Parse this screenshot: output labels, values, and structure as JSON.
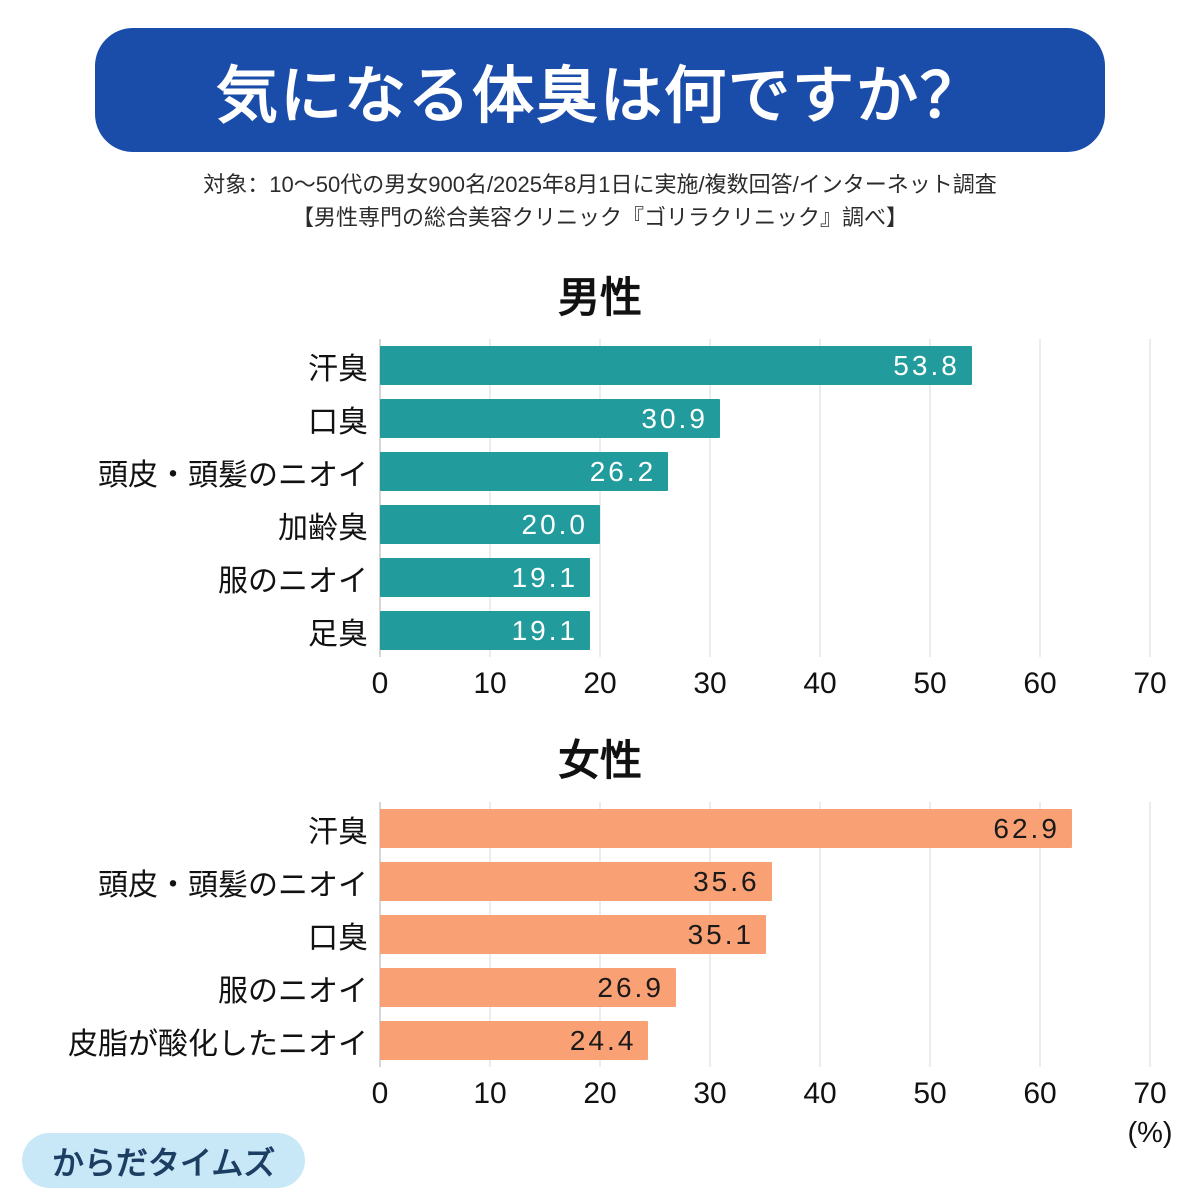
{
  "header": {
    "title": "気になる体臭は何ですか？",
    "bg_color": "#1a4caa",
    "text_color": "#ffffff"
  },
  "subtitle": {
    "line1": "対象：10〜50代の男女900名/2025年8月1日に実施/複数回答/インターネット調査",
    "line2": "【男性専門の総合美容クリニック『ゴリラクリニック』調べ】"
  },
  "axis_unit_label": "(%)",
  "footer_badge": {
    "label": "からだタイムズ",
    "bg_color": "#c8e8f8",
    "text_color": "#1d3e63"
  },
  "chart_data": [
    {
      "type": "bar",
      "orientation": "horizontal",
      "title": "男性",
      "categories": [
        "汗臭",
        "口臭",
        "頭皮・頭髪のニオイ",
        "加齢臭",
        "服のニオイ",
        "足臭"
      ],
      "values": [
        53.8,
        30.9,
        26.2,
        20.0,
        19.1,
        19.1
      ],
      "value_labels": [
        "53.8",
        "30.9",
        "26.2",
        "20.0",
        "19.1",
        "19.1"
      ],
      "bar_color": "#219b9b",
      "value_label_color": "#ffffff",
      "xlim": [
        0,
        70
      ],
      "x_ticks": [
        0,
        10,
        20,
        30,
        40,
        50,
        60,
        70
      ],
      "grid": true,
      "legend": "none"
    },
    {
      "type": "bar",
      "orientation": "horizontal",
      "title": "女性",
      "categories": [
        "汗臭",
        "頭皮・頭髪のニオイ",
        "口臭",
        "服のニオイ",
        "皮脂が酸化したニオイ"
      ],
      "values": [
        62.9,
        35.6,
        35.1,
        26.9,
        24.4
      ],
      "value_labels": [
        "62.9",
        "35.6",
        "35.1",
        "26.9",
        "24.4"
      ],
      "bar_color": "#f9a074",
      "value_label_color": "#1a1a1a",
      "xlim": [
        0,
        70
      ],
      "x_ticks": [
        0,
        10,
        20,
        30,
        40,
        50,
        60,
        70
      ],
      "grid": true,
      "legend": "none"
    }
  ]
}
